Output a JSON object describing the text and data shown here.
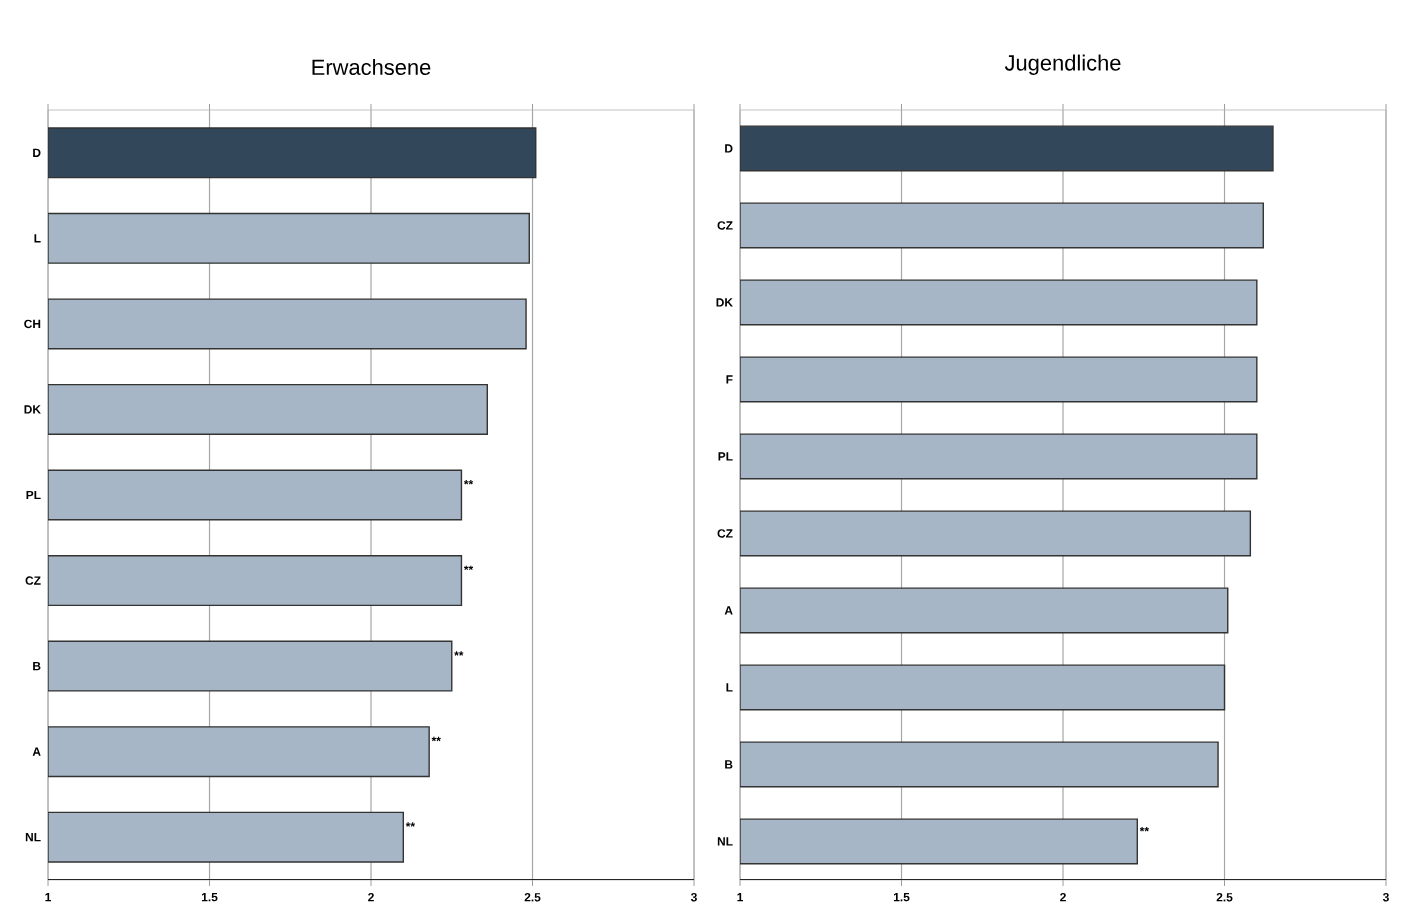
{
  "chart_data": [
    {
      "type": "bar",
      "orientation": "horizontal",
      "title": "Erwachsene",
      "categories": [
        "D",
        "L",
        "CH",
        "DK",
        "PL",
        "CZ",
        "B",
        "A",
        "NL"
      ],
      "values": [
        2.51,
        2.49,
        2.48,
        2.36,
        2.28,
        2.28,
        2.25,
        2.18,
        2.1
      ],
      "colors": [
        "#33475b",
        "#a6b6c6",
        "#a6b6c6",
        "#a6b6c6",
        "#a6b6c6",
        "#a6b6c6",
        "#a6b6c6",
        "#a6b6c6",
        "#a6b6c6"
      ],
      "xlim": [
        1,
        3
      ],
      "xticks": [
        1,
        1.5,
        2,
        2.5,
        3
      ],
      "grid": "x",
      "annotations": [
        {
          "text": "**",
          "x": 2.28,
          "y": "PL"
        },
        {
          "text": "**",
          "x": 2.28,
          "y": "CZ"
        },
        {
          "text": "**",
          "x": 2.25,
          "y": "B"
        },
        {
          "text": "**",
          "x": 2.18,
          "y": "A"
        },
        {
          "text": "**",
          "x": 2.1,
          "y": "NL"
        }
      ]
    },
    {
      "type": "bar",
      "orientation": "horizontal",
      "title": "Jugendliche",
      "categories": [
        "D",
        "CZ",
        "DK",
        "F",
        "PL",
        "CZ",
        "A",
        "L",
        "B",
        "NL"
      ],
      "values": [
        2.65,
        2.62,
        2.6,
        2.6,
        2.6,
        2.58,
        2.51,
        2.5,
        2.48,
        2.23
      ],
      "colors": [
        "#33475b",
        "#a6b6c6",
        "#a6b6c6",
        "#a6b6c6",
        "#a6b6c6",
        "#a6b6c6",
        "#a6b6c6",
        "#a6b6c6",
        "#a6b6c6",
        "#a6b6c6"
      ],
      "xlim": [
        1,
        3
      ],
      "xticks": [
        1,
        1.5,
        2,
        2.5,
        3
      ],
      "grid": "x",
      "annotations": [
        {
          "text": "**",
          "x": 2.23,
          "y": "NL"
        }
      ]
    }
  ]
}
